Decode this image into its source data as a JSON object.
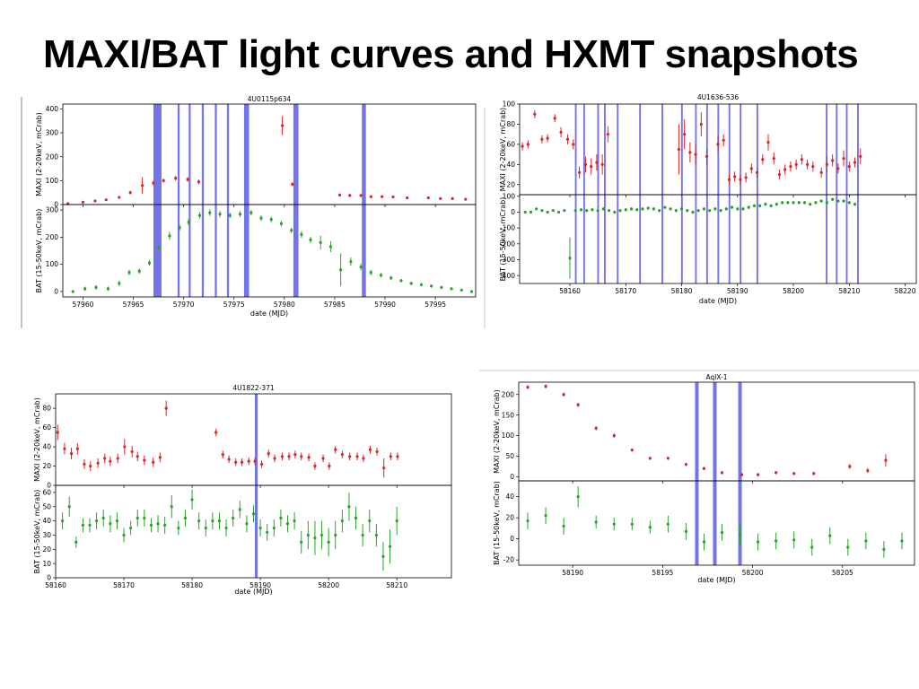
{
  "slide": {
    "title": "MAXI/BAT light curves and HXMT snapshots"
  },
  "colors": {
    "maxi": "#d62728",
    "bat": "#2ca02c",
    "band": "#5a5ae6"
  },
  "chart_data": [
    {
      "id": "4U0115",
      "type": "scatter",
      "title": "4U0115p634",
      "xlabel": "date (MJD)",
      "xlim": [
        57958,
        57999
      ],
      "xticks": [
        57960,
        57965,
        57970,
        57975,
        57980,
        57985,
        57990,
        57995
      ],
      "hxmt_bands": [
        [
          57967.0,
          57967.8
        ],
        [
          57969.4,
          57969.6
        ],
        [
          57970.5,
          57970.7
        ],
        [
          57971.8,
          57972.0
        ],
        [
          57973.1,
          57973.3
        ],
        [
          57974.3,
          57974.5
        ],
        [
          57976.0,
          57976.5
        ],
        [
          57980.9,
          57981.4
        ],
        [
          57987.7,
          57988.1
        ]
      ],
      "maxi": {
        "ylabel": "MAXI (2-20keV, mCrab)",
        "ylim": [
          0,
          420
        ],
        "yticks": [
          0,
          100,
          200,
          300,
          400
        ],
        "x": [
          57958.5,
          57960,
          57961.2,
          57962.3,
          57963.6,
          57964.7,
          57965.9,
          57967,
          57968,
          57969.2,
          57970.4,
          57971.5,
          57979.8,
          57980.8,
          57985.5,
          57986.5,
          57987.6,
          57988.6,
          57989.7,
          57990.8,
          57992.2,
          57994.3,
          57995.5,
          57996.7,
          57998
        ],
        "y": [
          4,
          10,
          15,
          20,
          30,
          50,
          80,
          90,
          100,
          110,
          105,
          95,
          330,
          85,
          40,
          38,
          38,
          33,
          33,
          32,
          28,
          28,
          25,
          25,
          22
        ],
        "err": [
          3,
          4,
          5,
          5,
          6,
          8,
          35,
          10,
          8,
          10,
          10,
          10,
          40,
          8,
          6,
          6,
          5,
          5,
          5,
          5,
          5,
          5,
          5,
          5,
          5
        ]
      },
      "bat": {
        "ylabel": "BAT (15-50keV, mCrab)",
        "ylim": [
          -20,
          320
        ],
        "yticks": [
          0,
          100,
          200,
          300
        ],
        "x": [
          57959,
          57960.2,
          57961.3,
          57962.5,
          57963.6,
          57964.6,
          57965.6,
          57966.6,
          57967.5,
          57968.6,
          57969.6,
          57970.5,
          57971.6,
          57972.6,
          57973.6,
          57974.6,
          57975.6,
          57976.7,
          57977.7,
          57978.7,
          57979.7,
          57980.7,
          57981.7,
          57982.6,
          57983.6,
          57984.6,
          57985.6,
          57986.6,
          57987.6,
          57988.6,
          57989.6,
          57990.6,
          57991.6,
          57992.6,
          57993.6,
          57994.6,
          57995.6,
          57996.6,
          57997.6,
          57998.6
        ],
        "y": [
          0,
          10,
          15,
          10,
          30,
          70,
          75,
          105,
          160,
          205,
          235,
          255,
          280,
          290,
          285,
          280,
          285,
          290,
          270,
          265,
          250,
          225,
          210,
          190,
          180,
          165,
          80,
          110,
          90,
          70,
          60,
          50,
          40,
          30,
          25,
          20,
          15,
          10,
          5,
          0
        ],
        "err": [
          5,
          8,
          8,
          8,
          10,
          10,
          10,
          10,
          10,
          15,
          10,
          12,
          12,
          12,
          12,
          10,
          10,
          10,
          10,
          10,
          10,
          10,
          12,
          12,
          25,
          20,
          60,
          15,
          12,
          10,
          8,
          8,
          6,
          6,
          6,
          6,
          5,
          5,
          5,
          5
        ]
      }
    },
    {
      "id": "4U1636",
      "type": "scatter",
      "title": "4U1636-536",
      "xlabel": "date (MJD)",
      "xlim": [
        58151,
        58222
      ],
      "xticks": [
        58160,
        58170,
        58180,
        58190,
        58200,
        58210,
        58220
      ],
      "hxmt_bands": [
        [
          58160.9,
          58161.2
        ],
        [
          58162.4,
          58162.7
        ],
        [
          58164.9,
          58165.2
        ],
        [
          58166.1,
          58166.4
        ],
        [
          58168.4,
          58168.7
        ],
        [
          58172.4,
          58172.7
        ],
        [
          58176.4,
          58176.7
        ],
        [
          58179.9,
          58180.2
        ],
        [
          58182.4,
          58182.7
        ],
        [
          58184.4,
          58184.7
        ],
        [
          58186.4,
          58186.7
        ],
        [
          58188.4,
          58188.7
        ],
        [
          58190.4,
          58190.7
        ],
        [
          58193.4,
          58193.7
        ],
        [
          58205.8,
          58206.1
        ],
        [
          58207.6,
          58207.9
        ],
        [
          58209.4,
          58209.7
        ],
        [
          58211.4,
          58211.7
        ]
      ],
      "maxi": {
        "ylabel": "MAXI (2-20keV, mCrab)",
        "ylim": [
          10,
          100
        ],
        "yticks": [
          20,
          40,
          60,
          80,
          100
        ],
        "x": [
          58151.5,
          58152.5,
          58153.7,
          58155,
          58156,
          58157.3,
          58158.4,
          58159.6,
          58160.6,
          58161.7,
          58162.8,
          58163.8,
          58164.8,
          58165.8,
          58166.8,
          58179.5,
          58180.5,
          58181.5,
          58182.5,
          58183.5,
          58184.5,
          58186.5,
          58187.5,
          58188.5,
          58189.5,
          58190.5,
          58191.5,
          58192.5,
          58193.5,
          58194.5,
          58195.5,
          58196.5,
          58197.5,
          58198.5,
          58199.5,
          58200.5,
          58201.5,
          58202.5,
          58203.5,
          58205,
          58206,
          58207,
          58208,
          58209,
          58210,
          58211,
          58212
        ],
        "y": [
          58,
          60,
          90,
          65,
          66,
          86,
          72,
          65,
          60,
          32,
          40,
          38,
          42,
          40,
          70,
          55,
          70,
          52,
          50,
          80,
          48,
          60,
          64,
          25,
          28,
          25,
          27,
          36,
          32,
          45,
          62,
          46,
          30,
          35,
          38,
          40,
          45,
          40,
          38,
          32,
          40,
          44,
          36,
          46,
          38,
          42,
          48
        ],
        "err": [
          4,
          4,
          4,
          4,
          4,
          4,
          5,
          5,
          5,
          6,
          8,
          8,
          8,
          10,
          8,
          25,
          15,
          10,
          10,
          12,
          8,
          8,
          6,
          5,
          5,
          5,
          5,
          5,
          5,
          5,
          8,
          6,
          5,
          5,
          5,
          5,
          5,
          5,
          5,
          5,
          8,
          6,
          5,
          8,
          5,
          5,
          8
        ]
      },
      "bat": {
        "ylabel": "BAT (15-50keV, mCrab)",
        "ylim": [
          -450,
          110
        ],
        "yticks": [
          -400,
          -300,
          -200,
          -100,
          0,
          100
        ],
        "x": [
          58152,
          58153,
          58154,
          58155,
          58156,
          58157,
          58158,
          58159,
          58160,
          58161,
          58162,
          58163,
          58164,
          58165,
          58166,
          58167,
          58168,
          58169,
          58170,
          58171,
          58172,
          58173,
          58174,
          58175,
          58176,
          58177,
          58178,
          58179,
          58180,
          58181,
          58182,
          58183,
          58184,
          58185,
          58186,
          58187,
          58188,
          58189,
          58190,
          58191,
          58192,
          58193,
          58194,
          58195,
          58196,
          58197,
          58198,
          58199,
          58200,
          58201,
          58202,
          58203,
          58204,
          58205,
          58206,
          58207,
          58208,
          58209,
          58210,
          58211
        ],
        "y": [
          0,
          0,
          20,
          10,
          0,
          10,
          0,
          10,
          -290,
          10,
          15,
          10,
          15,
          10,
          20,
          10,
          0,
          10,
          15,
          20,
          15,
          20,
          25,
          20,
          10,
          30,
          20,
          10,
          20,
          10,
          0,
          10,
          20,
          10,
          20,
          10,
          20,
          30,
          20,
          20,
          30,
          40,
          40,
          50,
          40,
          50,
          60,
          60,
          60,
          60,
          60,
          50,
          60,
          70,
          60,
          80,
          70,
          70,
          60,
          50
        ],
        "err": [
          8,
          8,
          8,
          8,
          8,
          8,
          8,
          8,
          130,
          10,
          10,
          10,
          10,
          10,
          10,
          10,
          10,
          10,
          10,
          10,
          10,
          10,
          10,
          10,
          10,
          10,
          10,
          10,
          10,
          10,
          10,
          10,
          10,
          10,
          10,
          10,
          10,
          10,
          10,
          10,
          10,
          10,
          10,
          10,
          10,
          10,
          10,
          10,
          10,
          10,
          10,
          10,
          10,
          10,
          10,
          10,
          10,
          10,
          10,
          10
        ]
      }
    },
    {
      "id": "4U1822",
      "type": "scatter",
      "title": "4U1822-371",
      "xlabel": "date (MJD)",
      "xlim": [
        58160,
        58218
      ],
      "xticks": [
        58160,
        58170,
        58180,
        58190,
        58200,
        58210
      ],
      "hxmt_bands": [
        [
          58189.2,
          58189.6
        ]
      ],
      "maxi": {
        "ylabel": "MAXI (2-20keV, mCrab)",
        "ylim": [
          0,
          95
        ],
        "yticks": [
          0,
          20,
          40,
          60,
          80
        ],
        "x": [
          58160.3,
          58161.3,
          58162.3,
          58163.2,
          58164.2,
          58165.1,
          58166.2,
          58167.2,
          58168,
          58169.1,
          58170.1,
          58171.2,
          58172,
          58173,
          58174.3,
          58175.3,
          58176.2,
          58183.5,
          58184.5,
          58185.4,
          58186.4,
          58187.3,
          58188.3,
          58189.2,
          58190.2,
          58191.2,
          58192.1,
          58193.2,
          58194.2,
          58195.1,
          58196,
          58197.1,
          58198,
          58199.2,
          58200.1,
          58201,
          58202,
          58203.1,
          58204.2,
          58205.1,
          58206.1,
          58207.1,
          58208.1,
          58209.1,
          58210.1
        ],
        "y": [
          55,
          38,
          33,
          38,
          22,
          20,
          23,
          28,
          25,
          28,
          40,
          35,
          30,
          26,
          24,
          29,
          80,
          55,
          32,
          27,
          24,
          24,
          25,
          25,
          22,
          33,
          28,
          30,
          30,
          32,
          30,
          29,
          20,
          28,
          20,
          37,
          32,
          30,
          30,
          28,
          37,
          35,
          18,
          30,
          30
        ],
        "err": [
          8,
          6,
          6,
          6,
          5,
          5,
          5,
          5,
          5,
          5,
          8,
          6,
          5,
          5,
          5,
          5,
          8,
          4,
          4,
          4,
          4,
          4,
          4,
          4,
          4,
          4,
          4,
          4,
          4,
          4,
          4,
          4,
          4,
          4,
          4,
          4,
          4,
          4,
          4,
          4,
          4,
          4,
          10,
          4,
          4
        ]
      },
      "bat": {
        "ylabel": "BAT (15-50keV, mCrab)",
        "ylim": [
          0,
          65
        ],
        "yticks": [
          0,
          10,
          20,
          30,
          40,
          50,
          60
        ],
        "x": [
          58161,
          58162,
          58163,
          58164,
          58165,
          58166,
          58167,
          58168,
          58169,
          58170,
          58171,
          58172,
          58173,
          58174,
          58175,
          58176,
          58177,
          58178,
          58179,
          58180,
          58181,
          58182,
          58183,
          58184,
          58185,
          58186,
          58187,
          58188,
          58189,
          58190,
          58191,
          58192,
          58193,
          58194,
          58195,
          58196,
          58197,
          58198,
          58199,
          58200,
          58201,
          58202,
          58203,
          58204,
          58205,
          58206,
          58207,
          58208,
          58209,
          58210
        ],
        "y": [
          40,
          50,
          25,
          37,
          37,
          40,
          42,
          38,
          40,
          30,
          35,
          42,
          42,
          37,
          38,
          37,
          50,
          35,
          42,
          55,
          40,
          35,
          40,
          40,
          35,
          42,
          48,
          38,
          45,
          35,
          32,
          35,
          42,
          38,
          40,
          25,
          30,
          28,
          30,
          25,
          30,
          40,
          50,
          42,
          30,
          40,
          30,
          15,
          22,
          40
        ],
        "err": [
          6,
          7,
          4,
          5,
          5,
          6,
          6,
          6,
          6,
          5,
          5,
          6,
          6,
          5,
          6,
          6,
          8,
          5,
          6,
          7,
          6,
          6,
          6,
          6,
          6,
          6,
          6,
          6,
          6,
          6,
          6,
          6,
          6,
          6,
          6,
          8,
          10,
          12,
          10,
          10,
          10,
          8,
          10,
          8,
          8,
          8,
          8,
          10,
          12,
          10
        ]
      }
    },
    {
      "id": "AqlX1",
      "type": "scatter",
      "title": "AqlX-1",
      "xlabel": "date (MJD)",
      "xlim": [
        58187,
        58209
      ],
      "xticks": [
        58190,
        58195,
        58200,
        58205
      ],
      "hxmt_bands": [
        [
          58196.8,
          58197.0
        ],
        [
          58197.8,
          58198.0
        ],
        [
          58199.2,
          58199.4
        ]
      ],
      "maxi": {
        "ylabel": "MAXI (2-20keV, mCrab)",
        "ylim": [
          -10,
          230
        ],
        "yticks": [
          0,
          50,
          100,
          150,
          200
        ],
        "x": [
          58187.5,
          58188.5,
          58189.5,
          58190.3,
          58191.3,
          58192.3,
          58193.3,
          58194.3,
          58195.3,
          58196.3,
          58197.3,
          58198.3,
          58199.4,
          58200.3,
          58201.3,
          58202.3,
          58203.4,
          58205.4,
          58206.4,
          58207.4
        ],
        "y": [
          218,
          220,
          200,
          175,
          118,
          100,
          65,
          45,
          45,
          30,
          20,
          10,
          5,
          5,
          10,
          8,
          8,
          25,
          15,
          40
        ],
        "err": [
          5,
          5,
          5,
          5,
          5,
          5,
          4,
          4,
          4,
          4,
          4,
          4,
          4,
          4,
          4,
          4,
          4,
          6,
          6,
          15
        ]
      },
      "bat": {
        "ylabel": "BAT (15-50keV, mCrab)",
        "ylim": [
          -25,
          55
        ],
        "yticks": [
          -20,
          0,
          20,
          40
        ],
        "x": [
          58187.5,
          58188.5,
          58189.5,
          58190.3,
          58191.3,
          58192.3,
          58193.3,
          58194.3,
          58195.3,
          58196.3,
          58197.3,
          58198.3,
          58199.3,
          58200.3,
          58201.3,
          58202.3,
          58203.3,
          58204.3,
          58205.3,
          58206.3,
          58207.3,
          58208.3
        ],
        "y": [
          17,
          22,
          12,
          40,
          16,
          14,
          14,
          11,
          14,
          7,
          -3,
          6,
          4,
          -3,
          -2,
          -1,
          -8,
          3,
          -8,
          -2,
          -10,
          -2
        ],
        "err": [
          8,
          8,
          8,
          10,
          6,
          6,
          6,
          6,
          8,
          8,
          8,
          8,
          10,
          8,
          8,
          8,
          8,
          8,
          8,
          8,
          8,
          8
        ]
      }
    }
  ]
}
